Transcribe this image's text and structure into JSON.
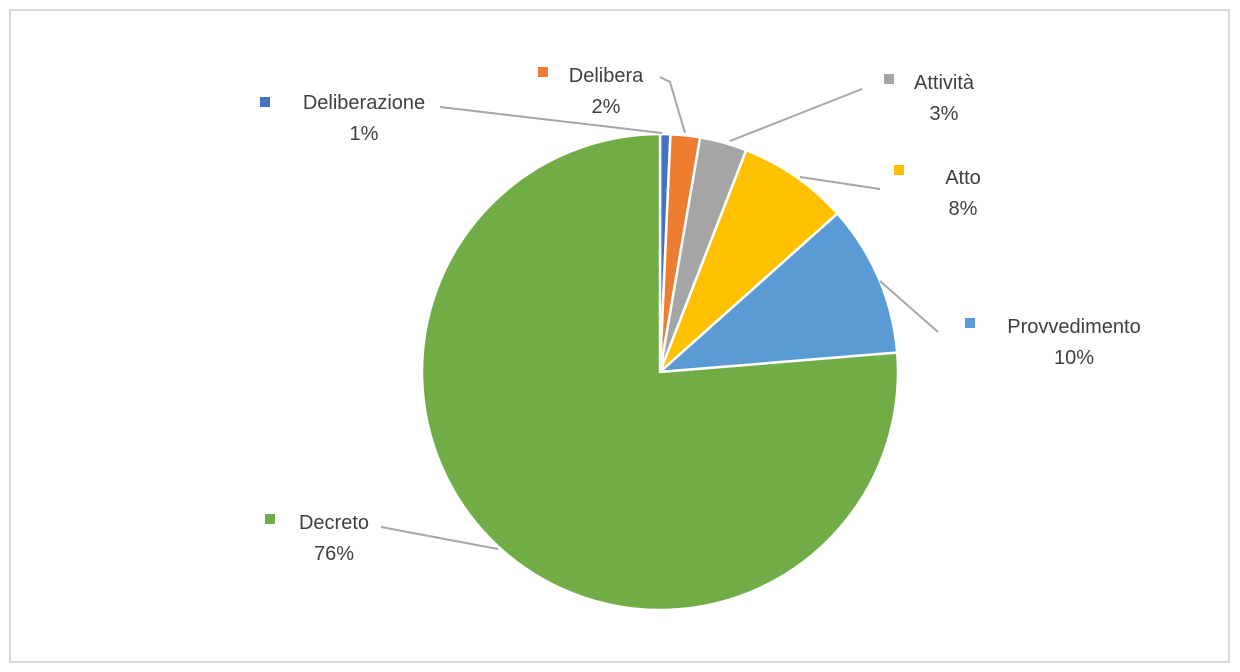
{
  "chart_data": {
    "type": "pie",
    "title": "",
    "legend": "data-labels",
    "slices": [
      {
        "name": "Deliberazione",
        "value": 0.7,
        "label": "1%",
        "color": "#4472c4"
      },
      {
        "name": "Delibera",
        "value": 2,
        "label": "2%",
        "color": "#ed7d31"
      },
      {
        "name": "Attività",
        "value": 3.2,
        "label": "3%",
        "color": "#a5a5a5"
      },
      {
        "name": "Atto",
        "value": 7.5,
        "label": "8%",
        "color": "#ffc000"
      },
      {
        "name": "Provvedimento",
        "value": 10.3,
        "label": "10%",
        "color": "#5b9bd5"
      },
      {
        "name": "Decreto",
        "value": 76.3,
        "label": "76%",
        "color": "#70ad47"
      }
    ]
  }
}
